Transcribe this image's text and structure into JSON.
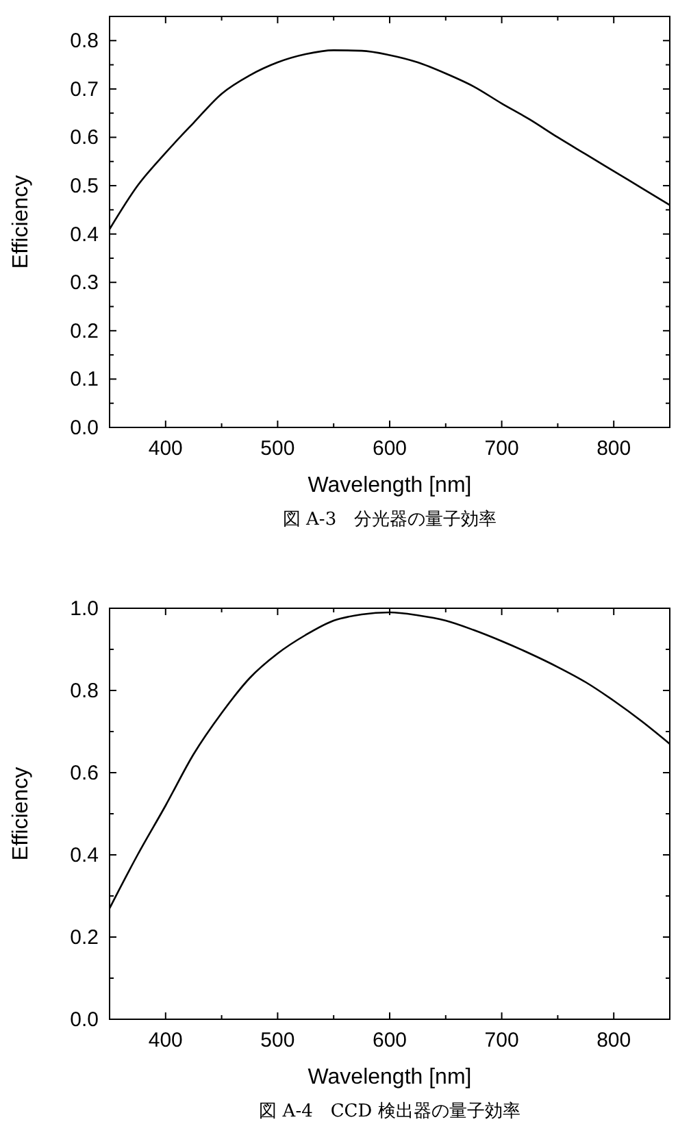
{
  "chart_data": [
    {
      "type": "line",
      "title": "図 A-3　分光器の量子効率",
      "xlabel": "Wavelength [nm]",
      "ylabel": "Efficiency",
      "xlim": [
        350,
        850
      ],
      "ylim": [
        0,
        0.85
      ],
      "xticks": [
        400,
        {
          "value": 450,
          "label": null
        },
        500,
        {
          "value": 550,
          "label": null
        },
        600,
        {
          "value": 650,
          "label": null
        },
        700,
        {
          "value": 750,
          "label": null
        },
        800
      ],
      "yticks": [
        "0.0",
        {
          "value": 0.05,
          "label": null
        },
        0.1,
        {
          "value": 0.15,
          "label": null
        },
        0.2,
        {
          "value": 0.25,
          "label": null
        },
        0.3,
        {
          "value": 0.35,
          "label": null
        },
        0.4,
        {
          "value": 0.45,
          "label": null
        },
        0.5,
        {
          "value": 0.55,
          "label": null
        },
        0.6,
        {
          "value": 0.65,
          "label": null
        },
        0.7,
        {
          "value": 0.75,
          "label": null
        },
        0.8
      ],
      "x": [
        350,
        375,
        400,
        425,
        450,
        475,
        500,
        525,
        550,
        575,
        600,
        625,
        650,
        675,
        700,
        725,
        750,
        775,
        800,
        825,
        850
      ],
      "series": [
        {
          "color": "#000000",
          "values": [
            0.41,
            0.5,
            0.568,
            0.63,
            0.69,
            0.728,
            0.755,
            0.772,
            0.78,
            0.779,
            0.77,
            0.755,
            0.732,
            0.705,
            0.67,
            0.637,
            0.6,
            0.565,
            0.53,
            0.495,
            0.46
          ]
        }
      ],
      "marker": "none",
      "line_style": "solid",
      "grid": false
    },
    {
      "type": "line",
      "title": "図 A-4　CCD 検出器の量子効率",
      "xlabel": "Wavelength [nm]",
      "ylabel": "Efficiency",
      "xlim": [
        350,
        850
      ],
      "ylim": [
        0,
        1.0
      ],
      "xticks": [
        400,
        {
          "value": 450,
          "label": null
        },
        500,
        {
          "value": 550,
          "label": null
        },
        600,
        {
          "value": 650,
          "label": null
        },
        700,
        {
          "value": 750,
          "label": null
        },
        800
      ],
      "yticks": [
        {
          "value": 0,
          "label": "0.0"
        },
        {
          "value": 0.1,
          "label": null
        },
        0.2,
        {
          "value": 0.3,
          "label": null
        },
        0.4,
        {
          "value": 0.5,
          "label": null
        },
        0.6,
        {
          "value": 0.7,
          "label": null
        },
        0.8,
        {
          "value": 0.9,
          "label": null
        },
        {
          "value": 1,
          "label": "1.0"
        }
      ],
      "x": [
        350,
        375,
        400,
        425,
        450,
        475,
        500,
        525,
        550,
        575,
        600,
        625,
        650,
        675,
        700,
        725,
        750,
        775,
        800,
        825,
        850
      ],
      "series": [
        {
          "color": "#000000",
          "values": [
            0.27,
            0.4,
            0.52,
            0.645,
            0.745,
            0.83,
            0.89,
            0.935,
            0.97,
            0.985,
            0.99,
            0.983,
            0.97,
            0.947,
            0.92,
            0.89,
            0.857,
            0.82,
            0.775,
            0.725,
            0.67
          ]
        }
      ],
      "marker": "none",
      "line_style": "solid",
      "grid": false
    }
  ]
}
